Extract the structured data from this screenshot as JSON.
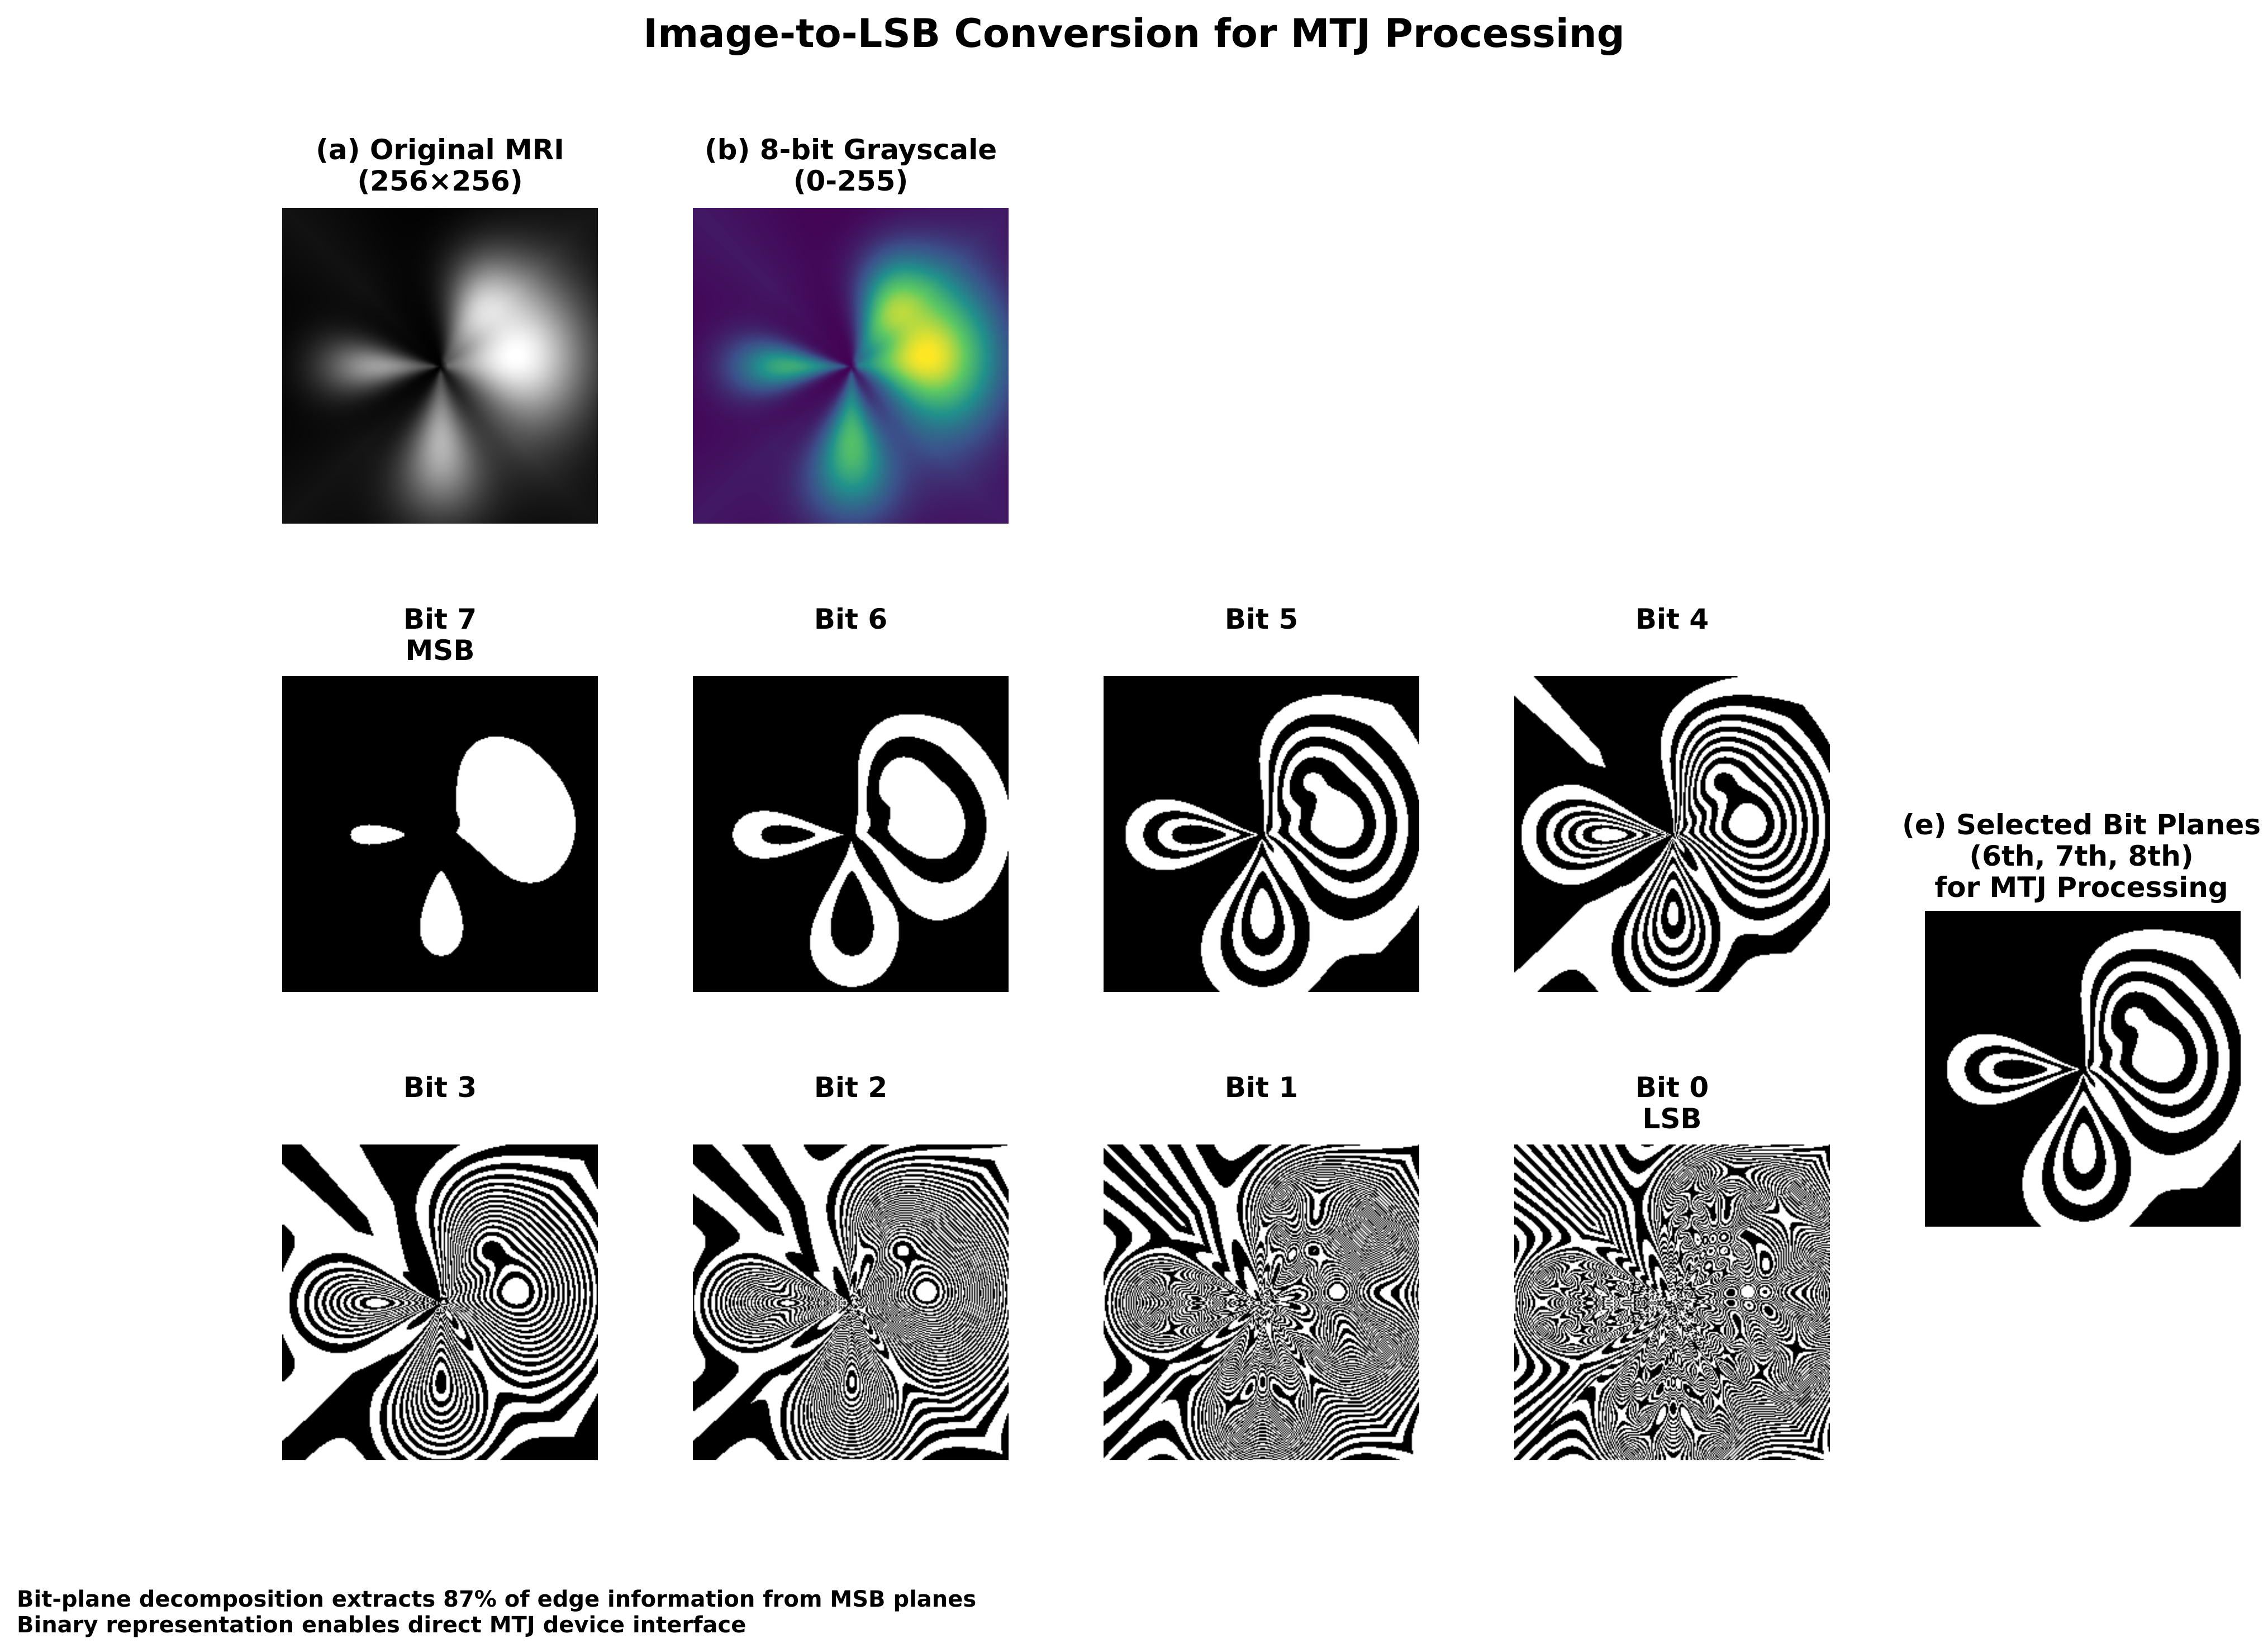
{
  "title": "Image-to-LSB Conversion for MTJ Processing",
  "panels": {
    "a": {
      "line1": "(a) Original MRI",
      "line2": "(256×256)"
    },
    "b": {
      "line1": "(b) 8-bit Grayscale",
      "line2": "(0-255)"
    },
    "bits": [
      {
        "line1": "Bit 7",
        "line2": "MSB"
      },
      {
        "line1": "Bit 6",
        "line2": ""
      },
      {
        "line1": "Bit 5",
        "line2": ""
      },
      {
        "line1": "Bit 4",
        "line2": ""
      },
      {
        "line1": "Bit 3",
        "line2": ""
      },
      {
        "line1": "Bit 2",
        "line2": ""
      },
      {
        "line1": "Bit 1",
        "line2": ""
      },
      {
        "line1": "Bit 0",
        "line2": "LSB"
      }
    ],
    "e": {
      "line1": "(e) Selected Bit Planes",
      "line2": "(6th, 7th, 8th)",
      "line3": "for MTJ Processing"
    }
  },
  "footnotes": [
    "Bit-plane decomposition extracts 87% of edge information from MSB planes",
    "Binary representation enables direct MTJ device interface"
  ],
  "colors": {
    "black": "#000000",
    "white": "#ffffff"
  }
}
